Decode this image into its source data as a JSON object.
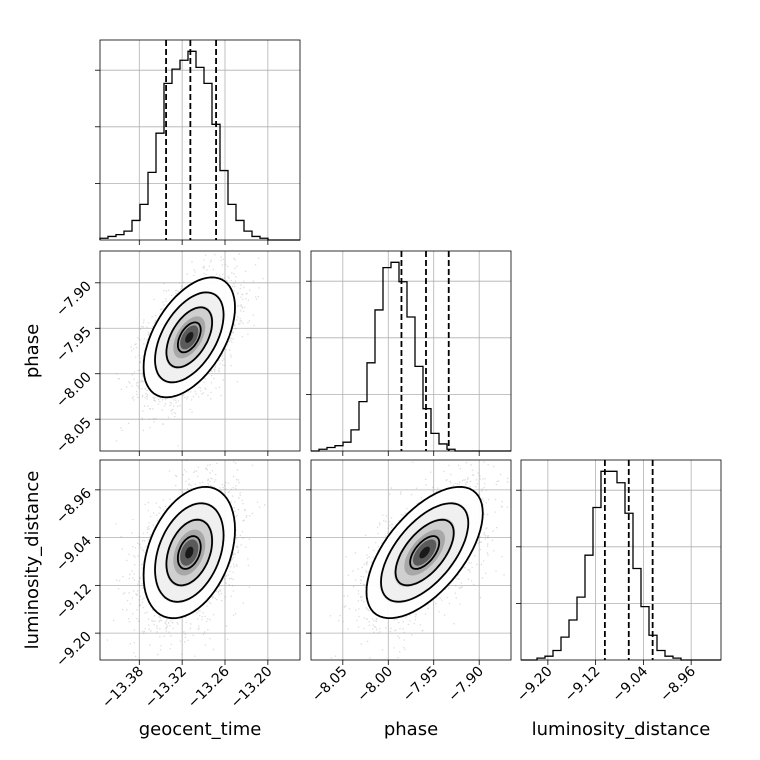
{
  "chart_data": {
    "type": "corner",
    "parameters": [
      "geocent_time",
      "phase",
      "luminosity_distance"
    ],
    "axis_labels": {
      "x": [
        "geocent_time",
        "phase",
        "luminosity_distance"
      ],
      "y": [
        "",
        "phase",
        "luminosity_distance"
      ]
    },
    "ranges": {
      "geocent_time": [
        -13.435,
        -13.155
      ],
      "phase": [
        -8.085,
        -7.865
      ],
      "luminosity_distance": [
        -9.245,
        -8.91
      ]
    },
    "ticks": {
      "geocent_time": {
        "values": [
          -13.38,
          -13.32,
          -13.26,
          -13.2
        ],
        "labels": [
          "−13.38",
          "−13.32",
          "−13.26",
          "−13.20"
        ]
      },
      "phase": {
        "values": [
          -8.05,
          -8.0,
          -7.95,
          -7.9
        ],
        "labels": [
          "−8.05",
          "−8.00",
          "−7.95",
          "−7.90"
        ]
      },
      "luminosity_distance": {
        "values": [
          -9.2,
          -9.12,
          -9.04,
          -8.96
        ],
        "labels": [
          "−9.20",
          "−9.12",
          "−9.04",
          "−8.96"
        ]
      }
    },
    "quantiles": {
      "geocent_time": [
        -13.3425,
        -13.3085,
        -13.2725
      ],
      "phase": [
        -7.9855,
        -7.9585,
        -7.9335
      ],
      "luminosity_distance": [
        -9.1045,
        -9.0645,
        -9.0245
      ]
    },
    "histograms": {
      "geocent_time": {
        "edges_start": -13.435,
        "edges_end": -13.155,
        "counts": [
          1,
          2,
          3,
          5,
          11,
          20,
          38,
          60,
          88,
          96,
          101,
          106,
          97,
          88,
          65,
          39,
          20,
          11,
          5,
          2,
          1,
          0,
          0,
          0,
          0
        ]
      },
      "phase": {
        "edges_start": -8.085,
        "edges_end": -7.865,
        "counts": [
          0,
          1,
          2,
          3,
          5,
          12,
          28,
          50,
          80,
          104,
          107,
          96,
          76,
          48,
          24,
          10,
          4,
          1,
          0,
          0,
          0,
          0,
          0,
          0,
          0
        ]
      },
      "luminosity_distance": {
        "edges_start": -9.245,
        "edges_end": -8.91,
        "counts": [
          0,
          0,
          1,
          2,
          5,
          12,
          21,
          33,
          55,
          80,
          99,
          99,
          93,
          77,
          48,
          28,
          13,
          5,
          2,
          1,
          0,
          0,
          0,
          0,
          0
        ]
      }
    },
    "joint": [
      {
        "x": "geocent_time",
        "y": "phase",
        "mean": [
          -13.31,
          -7.96
        ],
        "sd": [
          0.032,
          0.033
        ],
        "corr": 0.5
      },
      {
        "x": "geocent_time",
        "y": "luminosity_distance",
        "mean": [
          -13.31,
          -9.065
        ],
        "sd": [
          0.032,
          0.055
        ],
        "corr": 0.35
      },
      {
        "x": "phase",
        "y": "luminosity_distance",
        "mean": [
          -7.96,
          -9.065
        ],
        "sd": [
          0.032,
          0.055
        ],
        "corr": 0.6
      }
    ],
    "grid": true,
    "colors": {
      "line": "#000000",
      "density_min": "#ffffff",
      "density_max": "#000000",
      "points": "#8c8c8c"
    }
  }
}
